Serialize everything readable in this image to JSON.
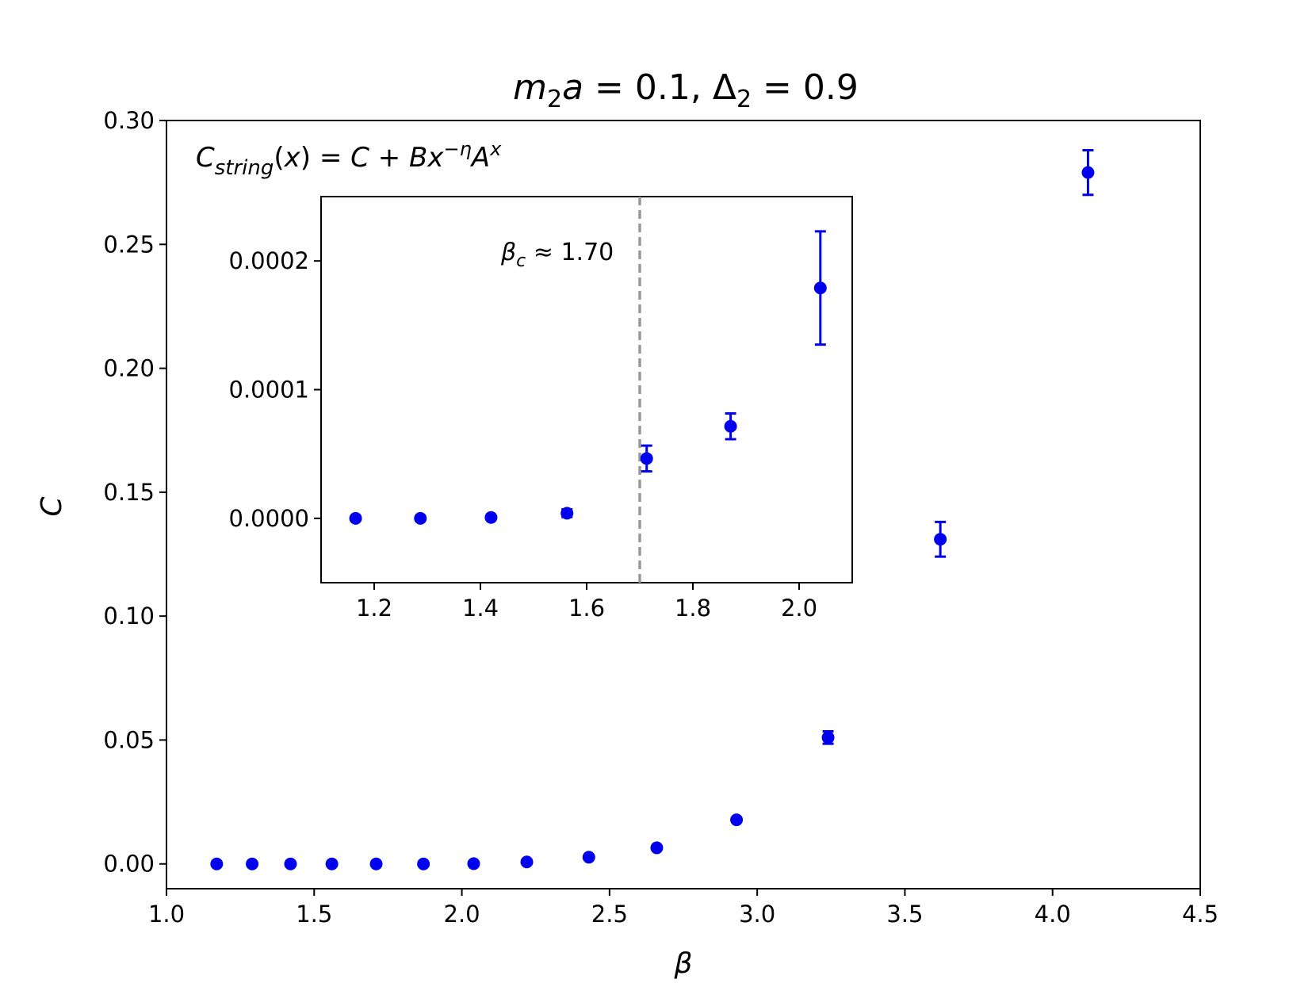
{
  "chart_data": [
    {
      "type": "scatter",
      "title": "m₂a = 0.1, Δ₂ = 0.9",
      "xlabel": "β",
      "ylabel": "C",
      "xlim": [
        1.0,
        4.5
      ],
      "ylim": [
        -0.01,
        0.3
      ],
      "xticks": [
        "1.0",
        "1.5",
        "2.0",
        "2.5",
        "3.0",
        "3.5",
        "4.0",
        "4.5"
      ],
      "yticks": [
        "0.00",
        "0.05",
        "0.10",
        "0.15",
        "0.20",
        "0.25",
        "0.30"
      ],
      "annotation": "C_string(x) = C + Bx^(−η)A^x",
      "grid": false,
      "marker_color": "#0000ee",
      "series": [
        {
          "x": [
            1.17,
            1.29,
            1.42,
            1.56,
            1.71,
            1.87,
            2.04,
            2.22,
            2.43,
            2.66,
            2.93,
            3.24,
            3.62,
            4.12
          ],
          "y": [
            0.0,
            0.0,
            0.0,
            0.0,
            0.0,
            0.0,
            0.0001,
            0.0008,
            0.0027,
            0.0065,
            0.0178,
            0.051,
            0.131,
            0.279
          ],
          "yerr": [
            0.0,
            0.0,
            0.0,
            0.0,
            0.0,
            0.0,
            0.0,
            0.0,
            0.0,
            0.0,
            0.0,
            0.0025,
            0.007,
            0.009
          ]
        }
      ]
    },
    {
      "type": "scatter",
      "role": "inset",
      "xlim": [
        1.1,
        2.1
      ],
      "ylim": [
        -5e-05,
        0.00025
      ],
      "xticks": [
        "1.2",
        "1.4",
        "1.6",
        "1.8",
        "2.0"
      ],
      "yticks": [
        "0.0000",
        "0.0001",
        "0.0002"
      ],
      "vline": {
        "x": 1.7,
        "label": "βc ≈ 1.70",
        "color": "#999999"
      },
      "marker_color": "#0000ee",
      "series": [
        {
          "x": [
            1.165,
            1.287,
            1.42,
            1.563,
            1.713,
            1.871,
            2.04
          ],
          "y": [
            0.0,
            0.0,
            7e-07,
            4e-06,
            4.65e-05,
            7.15e-05,
            0.000179
          ],
          "yerr": [
            0.0,
            0.0,
            0.0,
            3e-06,
            1e-05,
            1e-05,
            4.4e-05
          ]
        }
      ]
    }
  ]
}
